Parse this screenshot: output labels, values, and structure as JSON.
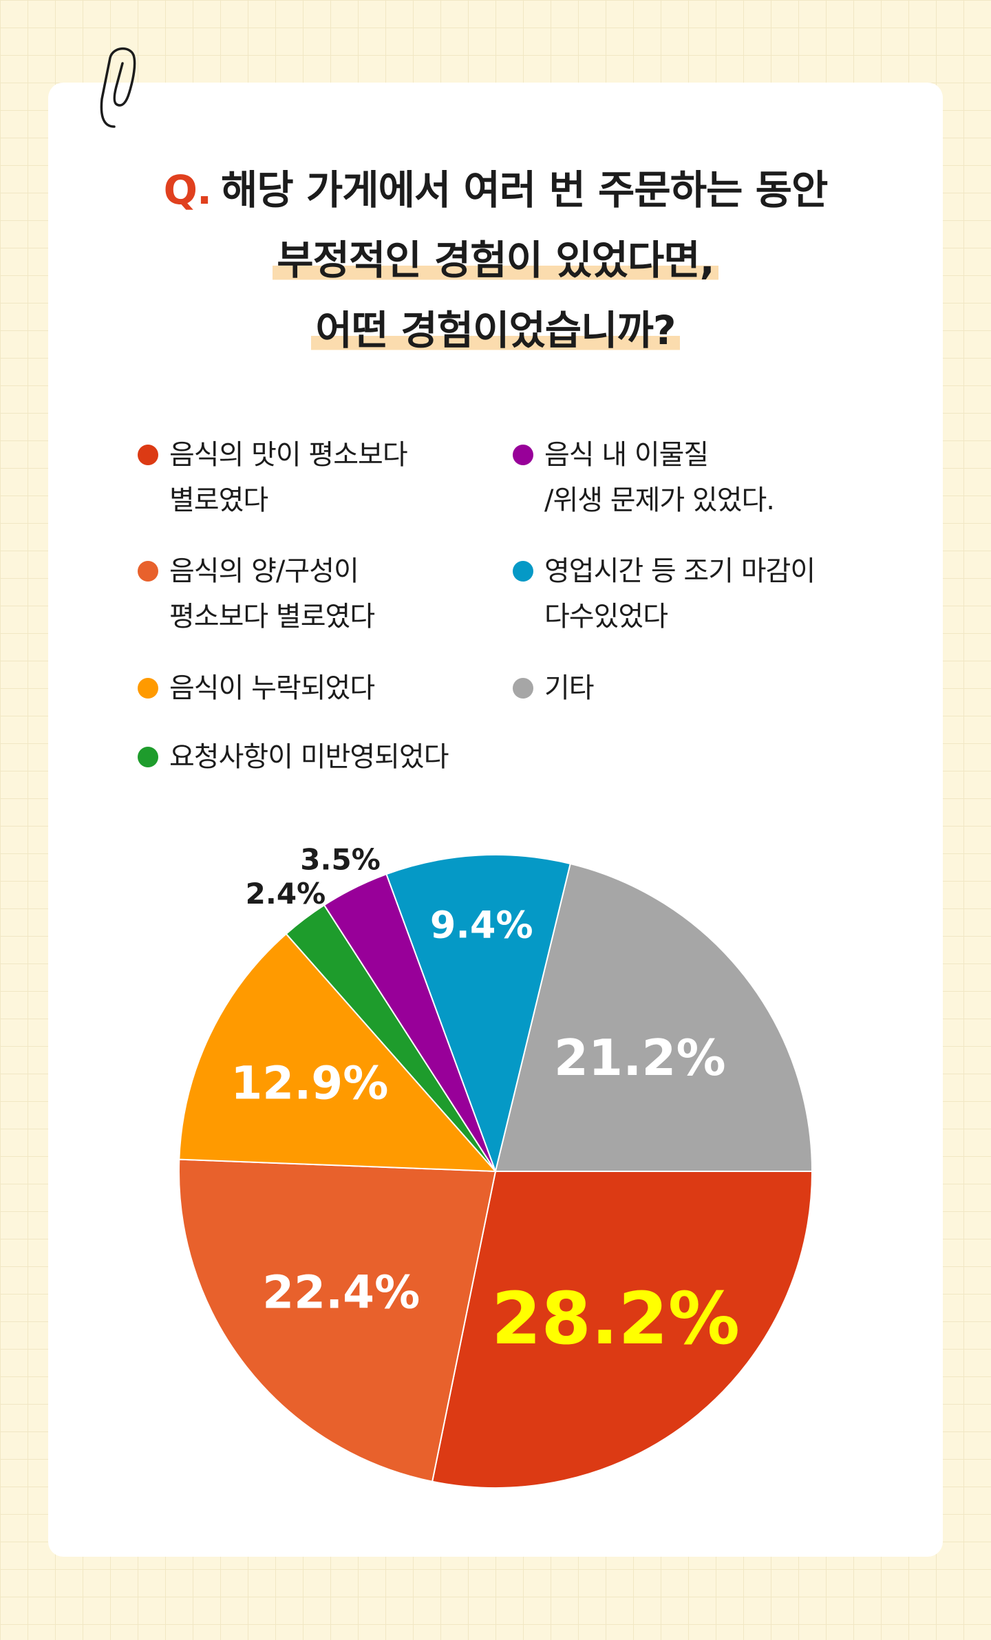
{
  "question": {
    "prefix": "Q.",
    "line1": "해당 가게에서 여러 번 주문하는 동안",
    "line2": "부정적인 경험이 있었다면,",
    "line3": "어떤 경험이었습니까?"
  },
  "legend": [
    {
      "label": "음식의 맛이 평소보다\n별로였다",
      "color": "#dc3a14"
    },
    {
      "label": "음식 내 이물질\n/위생 문제가 있었다.",
      "color": "#980099"
    },
    {
      "label": "음식의 양/구성이\n평소보다 별로였다",
      "color": "#e8612c"
    },
    {
      "label": "영업시간 등 조기 마감이\n다수있었다",
      "color": "#0599c6"
    },
    {
      "label": "음식이 누락되었다",
      "color": "#ff9a00"
    },
    {
      "label": "기타",
      "color": "#a6a6a6"
    },
    {
      "label": "요청사항이 미반영되었다",
      "color": "#1e9c2c"
    }
  ],
  "chart_data": {
    "type": "pie",
    "slices": [
      {
        "name": "음식의 맛이 평소보다 별로였다",
        "value": 28.2,
        "label": "28.2%",
        "color": "#dc3a14",
        "label_color": "#ffff00"
      },
      {
        "name": "음식의 양/구성이 평소보다 별로였다",
        "value": 22.4,
        "label": "22.4%",
        "color": "#e8612c",
        "label_color": "#ffffff"
      },
      {
        "name": "음식이 누락되었다",
        "value": 12.9,
        "label": "12.9%",
        "color": "#ff9a00",
        "label_color": "#ffffff"
      },
      {
        "name": "요청사항이 미반영되었다",
        "value": 2.4,
        "label": "2.4%",
        "color": "#1e9c2c",
        "label_color": "#1c1c1c"
      },
      {
        "name": "음식 내 이물질 /위생 문제가 있었다.",
        "value": 3.5,
        "label": "3.5%",
        "color": "#980099",
        "label_color": "#1c1c1c"
      },
      {
        "name": "영업시간 등 조기 마감이 다수있었다",
        "value": 9.4,
        "label": "9.4%",
        "color": "#0599c6",
        "label_color": "#ffffff"
      },
      {
        "name": "기타",
        "value": 21.2,
        "label": "21.2%",
        "color": "#a6a6a6",
        "label_color": "#ffffff"
      }
    ]
  }
}
